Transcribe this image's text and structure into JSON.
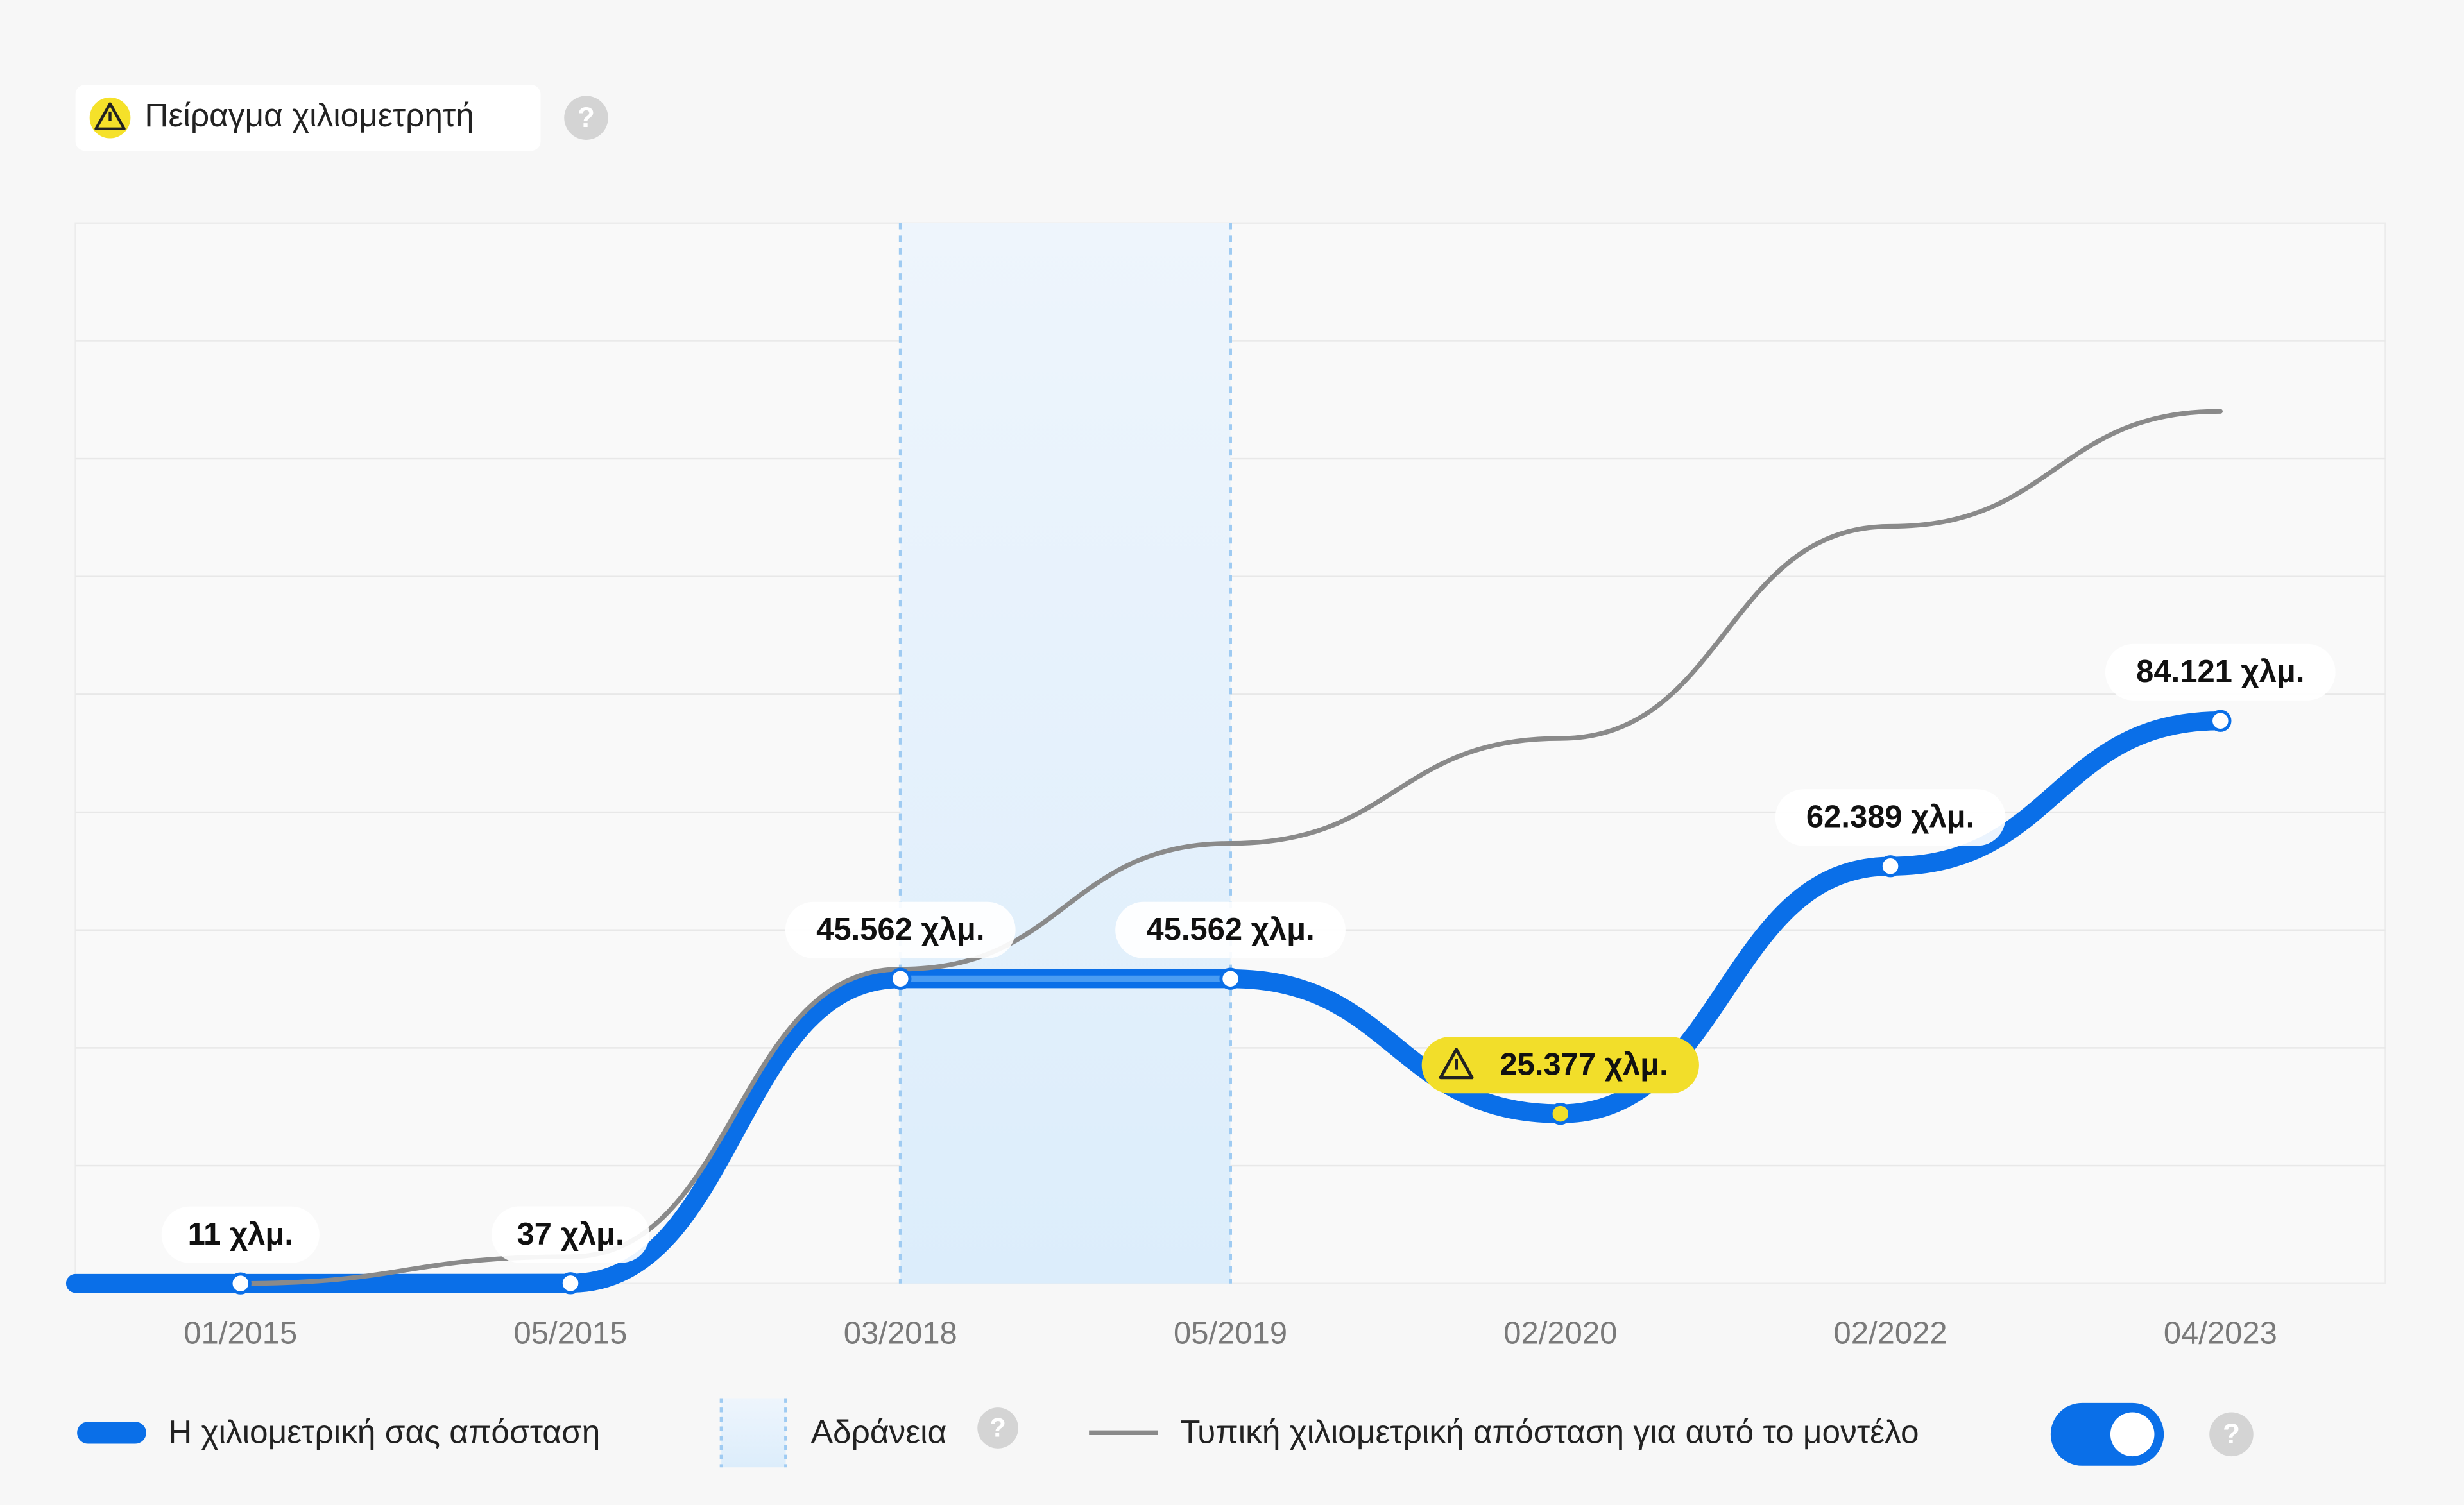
{
  "header": {
    "badge": "Πείραγμα χιλιομετρητή"
  },
  "help_icon": "?",
  "chart_data": {
    "type": "line",
    "categories": [
      "01/2015",
      "05/2015",
      "03/2018",
      "05/2019",
      "02/2020",
      "02/2022",
      "04/2023"
    ],
    "series": [
      {
        "name": "Η χιλιομετρική σας απόσταση",
        "color": "#0a6fe8",
        "values": [
          11,
          37,
          45562,
          45562,
          25377,
          62389,
          84121
        ],
        "value_labels": [
          "11 χλμ.",
          "37 χλμ.",
          "45.562 χλμ.",
          "45.562 χλμ.",
          "25.377 χλμ.",
          "62.389 χλμ.",
          "84.121 χλμ."
        ],
        "point_colors": [
          "#ffffff",
          "#ffffff",
          "#ffffff",
          "#ffffff",
          "#f2de2a",
          "#ffffff",
          "#ffffff"
        ]
      },
      {
        "name": "Τυπική χιλιομετρική απόσταση για αυτό το μοντέλο",
        "color": "#8a8a8a",
        "values": [
          0,
          4000,
          47000,
          65800,
          81500,
          113200,
          130400
        ]
      }
    ],
    "inactive": {
      "label": "Αδράνεια",
      "from": "03/2018",
      "to": "05/2019",
      "color": "#dcedfb"
    },
    "ylim": [
      0,
      158550
    ],
    "grid": true
  }
}
